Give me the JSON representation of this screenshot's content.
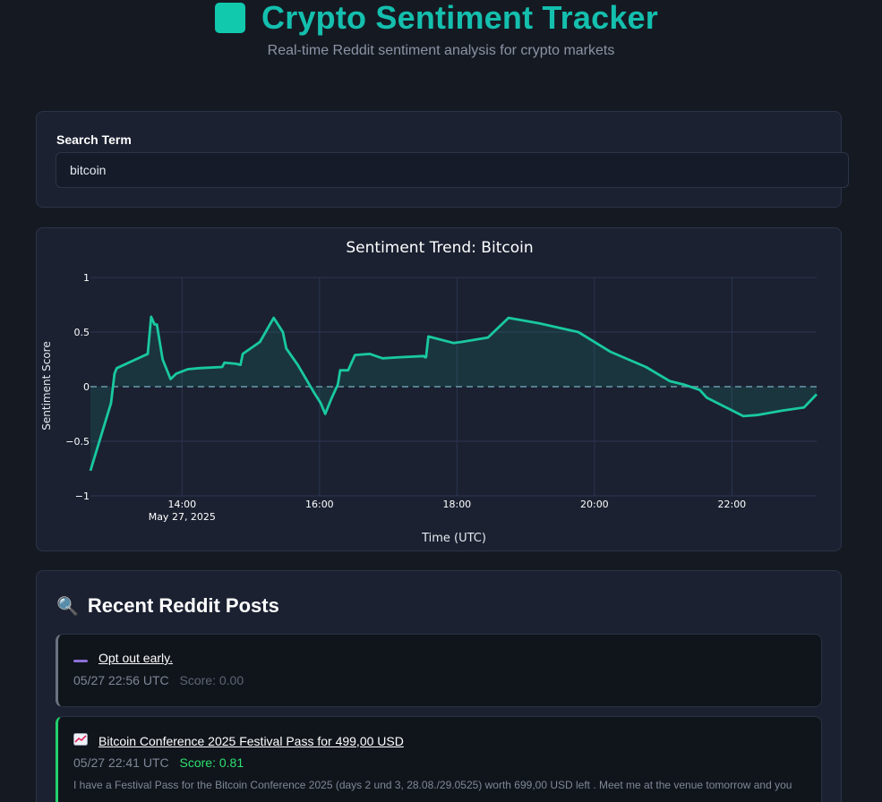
{
  "header": {
    "title": "Crypto Sentiment Tracker",
    "subtitle": "Real-time Reddit sentiment analysis for crypto markets",
    "logo_color": "#11c9ad"
  },
  "search": {
    "label": "Search Term",
    "value": "bitcoin"
  },
  "chart_data": {
    "type": "area",
    "title": "Sentiment Trend: Bitcoin",
    "xlabel": "Time (UTC)",
    "ylabel": "Sentiment Score",
    "ylim": [
      -1,
      1
    ],
    "yticks": [
      "1",
      "0.5",
      "0",
      "−0.5",
      "−1"
    ],
    "xticks": [
      "14:00",
      "16:00",
      "18:00",
      "20:00",
      "22:00"
    ],
    "xtick_sublabel": "May 27, 2025",
    "line_color": "#19c9a0",
    "zero_line": true,
    "grid": true,
    "points": [
      [
        "12:40",
        -0.77
      ],
      [
        "12:58",
        -0.15
      ],
      [
        "13:01",
        0.12
      ],
      [
        "13:03",
        0.17
      ],
      [
        "13:30",
        0.3
      ],
      [
        "13:33",
        0.64
      ],
      [
        "13:36",
        0.57
      ],
      [
        "13:38",
        0.57
      ],
      [
        "13:43",
        0.25
      ],
      [
        "13:50",
        0.07
      ],
      [
        "13:55",
        0.12
      ],
      [
        "14:05",
        0.16
      ],
      [
        "14:15",
        0.17
      ],
      [
        "14:35",
        0.18
      ],
      [
        "14:37",
        0.22
      ],
      [
        "14:47",
        0.21
      ],
      [
        "14:51",
        0.2
      ],
      [
        "14:53",
        0.3
      ],
      [
        "15:08",
        0.41
      ],
      [
        "15:20",
        0.63
      ],
      [
        "15:28",
        0.5
      ],
      [
        "15:31",
        0.35
      ],
      [
        "15:41",
        0.2
      ],
      [
        "15:55",
        -0.05
      ],
      [
        "16:01",
        -0.15
      ],
      [
        "16:05",
        -0.25
      ],
      [
        "16:10",
        -0.12
      ],
      [
        "16:16",
        0.02
      ],
      [
        "16:18",
        0.15
      ],
      [
        "16:25",
        0.15
      ],
      [
        "16:31",
        0.29
      ],
      [
        "16:44",
        0.3
      ],
      [
        "16:55",
        0.26
      ],
      [
        "17:10",
        0.27
      ],
      [
        "17:31",
        0.28
      ],
      [
        "17:32",
        0.27
      ],
      [
        "17:33",
        0.27
      ],
      [
        "17:35",
        0.46
      ],
      [
        "17:57",
        0.4
      ],
      [
        "18:04",
        0.41
      ],
      [
        "18:27",
        0.45
      ],
      [
        "18:45",
        0.63
      ],
      [
        "19:12",
        0.58
      ],
      [
        "19:46",
        0.5
      ],
      [
        "20:14",
        0.32
      ],
      [
        "20:45",
        0.18
      ],
      [
        "21:06",
        0.05
      ],
      [
        "21:18",
        0.02
      ],
      [
        "21:32",
        -0.03
      ],
      [
        "21:38",
        -0.1
      ],
      [
        "22:10",
        -0.27
      ],
      [
        "22:22",
        -0.26
      ],
      [
        "22:44",
        -0.22
      ],
      [
        "23:03",
        -0.19
      ],
      [
        "23:14",
        -0.07
      ]
    ]
  },
  "posts_section": {
    "title": "Recent Reddit Posts",
    "icon": "magnifier-icon",
    "posts": [
      {
        "icon": "neutral-dash-icon",
        "title": "Opt out early.",
        "time": "05/27 22:56 UTC",
        "score": "Score: 0.00",
        "accent": "#6b7280",
        "body": ""
      },
      {
        "icon": "trend-chart-icon",
        "title": "Bitcoin Conference 2025 Festival Pass for 499,00 USD",
        "time": "05/27 22:41 UTC",
        "score": "Score: 0.81",
        "accent": "#23d16b",
        "body": "I have a Festival Pass for the Bitcoin Conference 2025 (days 2 und 3, 28.08./29.0525) worth 699,00 USD left . Meet me at the venue tomorrow and you"
      }
    ]
  }
}
